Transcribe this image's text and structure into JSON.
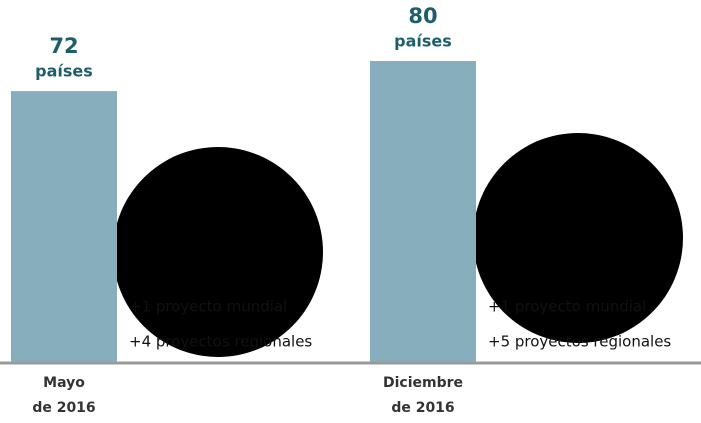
{
  "chart_data": {
    "type": "bar",
    "categories": [
      [
        "Mayo",
        "de 2016"
      ],
      [
        "Diciembre",
        "de 2016"
      ]
    ],
    "values": [
      72,
      80
    ],
    "unit_label": "países",
    "annotations": [
      [
        "+1 proyecto mundial",
        "+4 proyectos regionales"
      ],
      [
        "+1 proyecto mundial",
        "+5 proyectos regionales"
      ]
    ],
    "color": "#86aebd",
    "ylim": [
      0,
      80
    ]
  }
}
